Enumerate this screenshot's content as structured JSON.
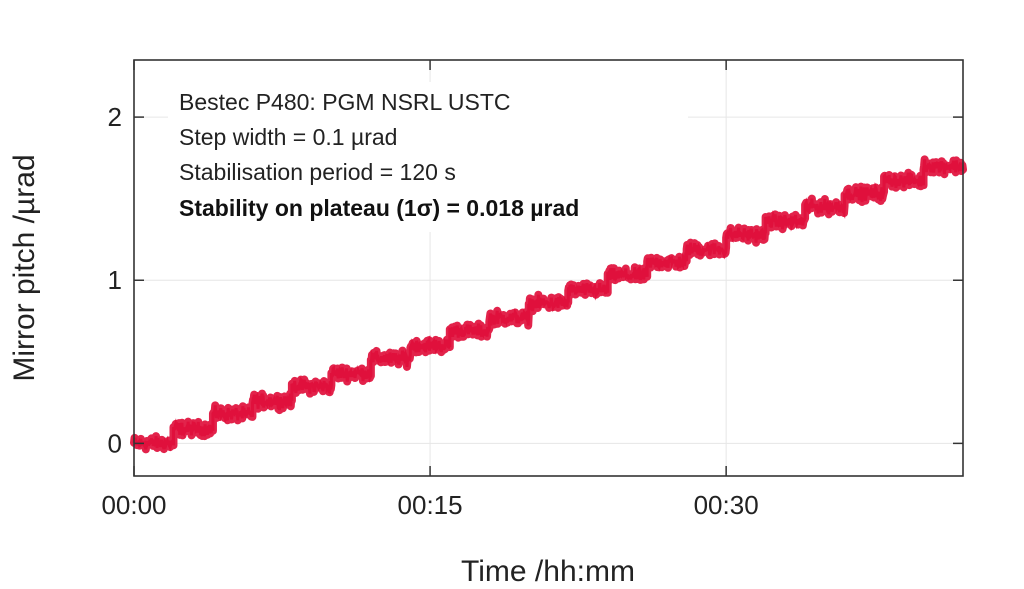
{
  "chart_data": {
    "type": "line",
    "xlabel": "Time /hh:mm",
    "ylabel": "Mirror pitch /µrad",
    "x_unit": "minutes",
    "xlim": [
      0,
      42
    ],
    "ylim": [
      -0.2,
      2.35
    ],
    "x_ticks": [
      {
        "value": 0,
        "label": "00:00"
      },
      {
        "value": 15,
        "label": "00:15"
      },
      {
        "value": 30,
        "label": "00:30"
      }
    ],
    "y_ticks": [
      {
        "value": 0,
        "label": "0"
      },
      {
        "value": 1,
        "label": "1"
      },
      {
        "value": 2,
        "label": "2"
      }
    ],
    "grid": true,
    "series": [
      {
        "color": "#e0103c",
        "step_width": 0.1,
        "plateau_duration_min": 2,
        "noise_sigma": 0.018,
        "plateaus": [
          {
            "start": 0,
            "end": 2,
            "value": 0.0
          },
          {
            "start": 2,
            "end": 4,
            "value": 0.09
          },
          {
            "start": 4,
            "end": 6,
            "value": 0.18
          },
          {
            "start": 6,
            "end": 8,
            "value": 0.26
          },
          {
            "start": 8,
            "end": 10,
            "value": 0.35
          },
          {
            "start": 10,
            "end": 12,
            "value": 0.43
          },
          {
            "start": 12,
            "end": 14,
            "value": 0.52
          },
          {
            "start": 14,
            "end": 16,
            "value": 0.6
          },
          {
            "start": 16,
            "end": 18,
            "value": 0.69
          },
          {
            "start": 18,
            "end": 20,
            "value": 0.77
          },
          {
            "start": 20,
            "end": 22,
            "value": 0.86
          },
          {
            "start": 22,
            "end": 24,
            "value": 0.94
          },
          {
            "start": 24,
            "end": 26,
            "value": 1.03
          },
          {
            "start": 26,
            "end": 28,
            "value": 1.11
          },
          {
            "start": 28,
            "end": 30,
            "value": 1.19
          },
          {
            "start": 30,
            "end": 32,
            "value": 1.28
          },
          {
            "start": 32,
            "end": 34,
            "value": 1.36
          },
          {
            "start": 34,
            "end": 36,
            "value": 1.45
          },
          {
            "start": 36,
            "end": 38,
            "value": 1.53
          },
          {
            "start": 38,
            "end": 40,
            "value": 1.61
          },
          {
            "start": 40,
            "end": 42,
            "value": 1.7
          }
        ]
      }
    ],
    "annotations": [
      "Bestec P480: PGM NSRL USTC",
      "Step width = 0.1 µrad",
      "Stabilisation period = 120 s",
      "Stability on plateau (1σ) = 0.018 µrad"
    ]
  }
}
